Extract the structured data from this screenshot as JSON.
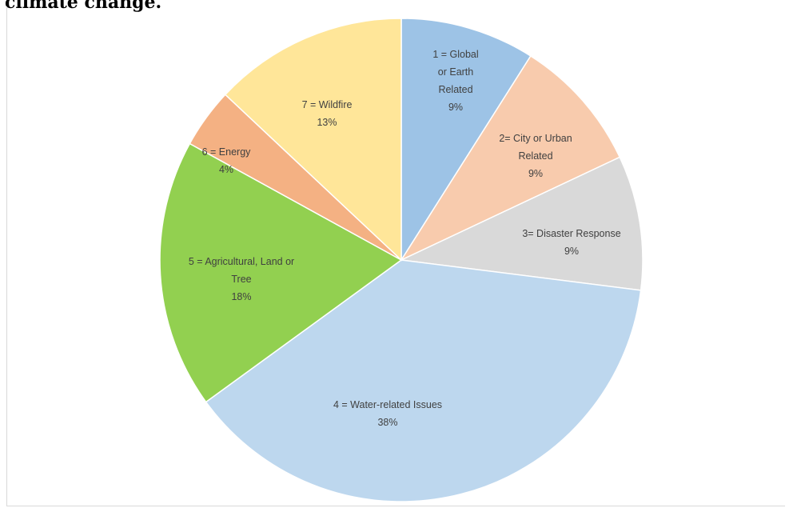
{
  "caption": "climate change.",
  "chart_data": {
    "type": "pie",
    "title": "",
    "slices": [
      {
        "name": "1 = Global or Earth Related",
        "label_lines": [
          "1 = Global",
          "or Earth",
          "Related"
        ],
        "pct_label": "9%",
        "value": 9,
        "color": "#9dc3e6"
      },
      {
        "name": "2= City or Urban Related",
        "label_lines": [
          "2= City or Urban",
          "Related"
        ],
        "pct_label": "9%",
        "value": 9,
        "color": "#f8cbad"
      },
      {
        "name": "3= Disaster Response",
        "label_lines": [
          "3= Disaster Response"
        ],
        "pct_label": "9%",
        "value": 9,
        "color": "#d9d9d9"
      },
      {
        "name": "4 = Water-related Issues",
        "label_lines": [
          "4 = Water-related Issues"
        ],
        "pct_label": "38%",
        "value": 38,
        "color": "#bdd7ee"
      },
      {
        "name": "5 = Agricultural, Land or Tree",
        "label_lines": [
          "5 = Agricultural, Land or",
          "Tree"
        ],
        "pct_label": "18%",
        "value": 18,
        "color": "#92d050"
      },
      {
        "name": "6 = Energy",
        "label_lines": [
          "6 = Energy"
        ],
        "pct_label": "4%",
        "value": 4,
        "color": "#f4b183"
      },
      {
        "name": "7 = Wildfire",
        "label_lines": [
          "7 = Wildfire"
        ],
        "pct_label": "13%",
        "value": 13,
        "color": "#ffe699"
      }
    ],
    "start_angle_deg": 0,
    "direction": "clockwise",
    "data_labels": "inside",
    "legend": "none"
  }
}
